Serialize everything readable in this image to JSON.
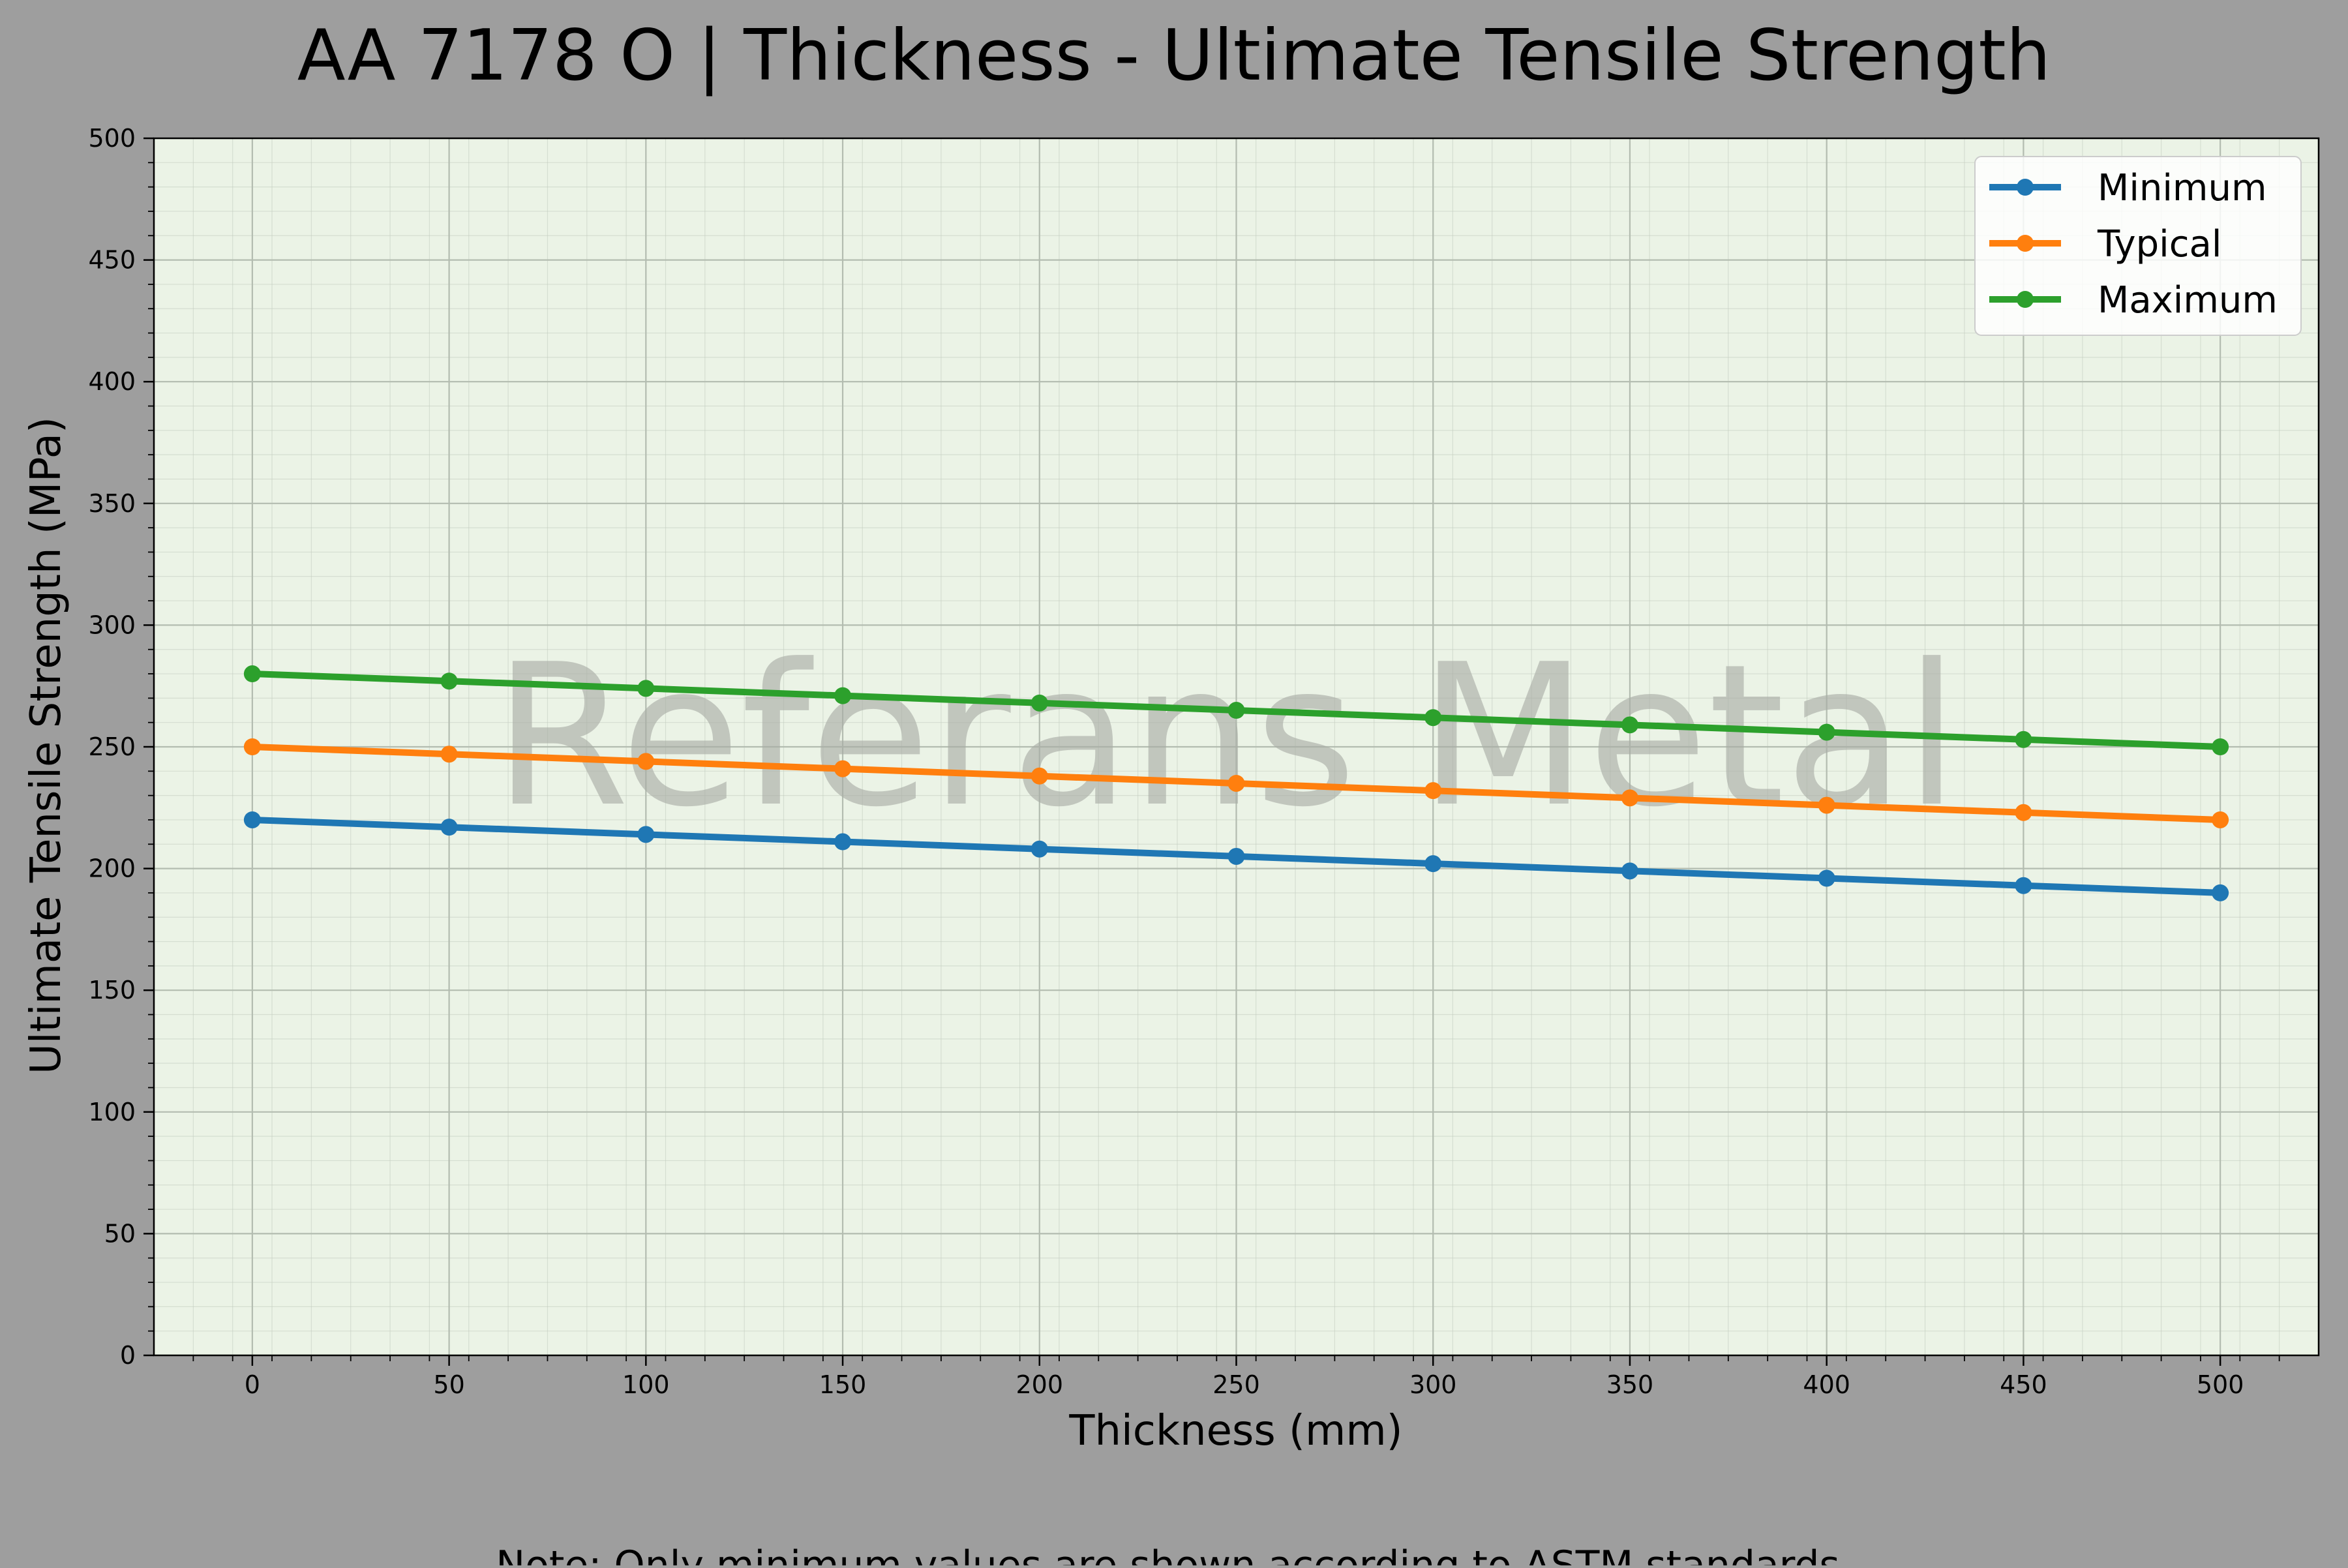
{
  "chart_data": {
    "type": "line",
    "title": "AA 7178 O | Thickness - Ultimate Tensile Strength",
    "xlabel": "Thickness (mm)",
    "ylabel": "Ultimate Tensile Strength (MPa)",
    "xlim": [
      -25,
      525
    ],
    "ylim": [
      0,
      500
    ],
    "xticks": [
      0,
      50,
      100,
      150,
      200,
      250,
      300,
      350,
      400,
      450,
      500
    ],
    "yticks": [
      0,
      50,
      100,
      150,
      200,
      250,
      300,
      350,
      400,
      450,
      500
    ],
    "x": [
      0,
      50,
      100,
      150,
      200,
      250,
      300,
      350,
      400,
      450,
      500
    ],
    "series": [
      {
        "name": "Minimum",
        "color": "#1f77b4",
        "values": [
          220,
          217,
          214,
          211,
          208,
          205,
          202,
          199,
          196,
          193,
          190
        ]
      },
      {
        "name": "Typical",
        "color": "#ff7f0e",
        "values": [
          250,
          247,
          244,
          241,
          238,
          235,
          232,
          229,
          226,
          223,
          220
        ]
      },
      {
        "name": "Maximum",
        "color": "#2ca02c",
        "values": [
          280,
          277,
          274,
          271,
          268,
          265,
          262,
          259,
          256,
          253,
          250
        ]
      }
    ],
    "grid": true,
    "legend_position": "top-right",
    "watermark": "Referans Metal",
    "note": "Note: Only minimum values are shown according to ASTM standards."
  },
  "colors": {
    "figure_background": "#9e9e9e",
    "plot_background": "#ebf3e6"
  }
}
